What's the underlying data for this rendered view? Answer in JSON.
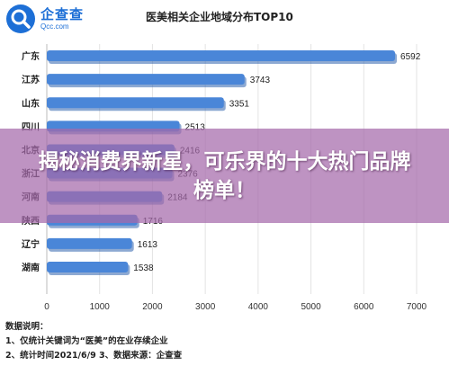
{
  "header": {
    "logo_name": "企查查",
    "logo_domain": "Qcc.com"
  },
  "chart_data": {
    "type": "bar",
    "orientation": "horizontal",
    "title": "医美相关企业地域分布TOP10",
    "categories": [
      "广东",
      "江苏",
      "山东",
      "四川",
      "北京",
      "浙江",
      "河南",
      "陕西",
      "辽宁",
      "湖南"
    ],
    "values": [
      6592,
      3743,
      3351,
      2513,
      2416,
      2376,
      2184,
      1716,
      1613,
      1538
    ],
    "value_labels": [
      "6592",
      "3743",
      "3351",
      "2513",
      "2416",
      "2376",
      "2184",
      "1716",
      "1613",
      "1538"
    ],
    "xlim": [
      0,
      7000
    ],
    "xticks": [
      "0",
      "1000",
      "2000",
      "3000",
      "4000",
      "5000",
      "6000",
      "7000"
    ],
    "grid": true,
    "bar_color": "#4a86d8",
    "bar_shadow_color": "#2f62ad"
  },
  "notes": {
    "heading": "数据说明：",
    "line1": "1、仅统计关键词为“医美”的在业存续企业",
    "line2": "2、统计时间2021/6/9    3、数据来源：企查查"
  },
  "overlay": {
    "headline": "揭秘消费界新星，可乐界的十大热门品牌榜单！"
  }
}
